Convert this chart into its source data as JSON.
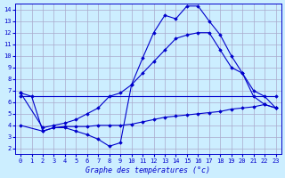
{
  "bg_color": "#cceeff",
  "grid_color": "#aaaacc",
  "line_color": "#0000cc",
  "xlabel": "Graphe des températures (°c)",
  "xlim": [
    -0.5,
    23.5
  ],
  "ylim": [
    1.5,
    14.5
  ],
  "yticks": [
    2,
    3,
    4,
    5,
    6,
    7,
    8,
    9,
    10,
    11,
    12,
    13,
    14
  ],
  "xticks": [
    0,
    1,
    2,
    3,
    4,
    5,
    6,
    7,
    8,
    9,
    10,
    11,
    12,
    13,
    14,
    15,
    16,
    17,
    18,
    19,
    20,
    21,
    22,
    23
  ],
  "series": [
    {
      "x": [
        0,
        23
      ],
      "y": [
        6.5,
        6.5
      ]
    },
    {
      "x": [
        0,
        2,
        3,
        4,
        5,
        6,
        7,
        8,
        9,
        10,
        11,
        12,
        13,
        14,
        15,
        16,
        17,
        18,
        19,
        20,
        21,
        22,
        23
      ],
      "y": [
        4.0,
        3.5,
        3.8,
        3.9,
        3.9,
        3.9,
        4.0,
        4.0,
        4.0,
        4.1,
        4.3,
        4.5,
        4.7,
        4.8,
        4.9,
        5.0,
        5.1,
        5.2,
        5.4,
        5.5,
        5.6,
        5.8,
        5.5
      ]
    },
    {
      "x": [
        0,
        1,
        2,
        3,
        4,
        5,
        6,
        7,
        8,
        9,
        10,
        11,
        12,
        13,
        14,
        15,
        16,
        17,
        18,
        19,
        20,
        21,
        22,
        23
      ],
      "y": [
        6.8,
        6.5,
        3.5,
        3.8,
        3.8,
        3.5,
        3.2,
        2.8,
        2.2,
        2.5,
        7.5,
        9.8,
        12.0,
        13.5,
        13.2,
        14.3,
        14.3,
        13.0,
        11.8,
        10.0,
        8.5,
        6.5,
        5.8,
        5.5
      ]
    },
    {
      "x": [
        0,
        2,
        3,
        4,
        5,
        6,
        7,
        8,
        9,
        10,
        11,
        12,
        13,
        14,
        15,
        16,
        17,
        18,
        19,
        20,
        21,
        22,
        23
      ],
      "y": [
        6.8,
        3.8,
        4.0,
        4.2,
        4.5,
        5.0,
        5.5,
        6.5,
        6.8,
        7.5,
        8.5,
        9.5,
        10.5,
        11.5,
        11.8,
        12.0,
        12.0,
        10.5,
        9.0,
        8.5,
        7.0,
        6.5,
        5.5
      ]
    }
  ]
}
